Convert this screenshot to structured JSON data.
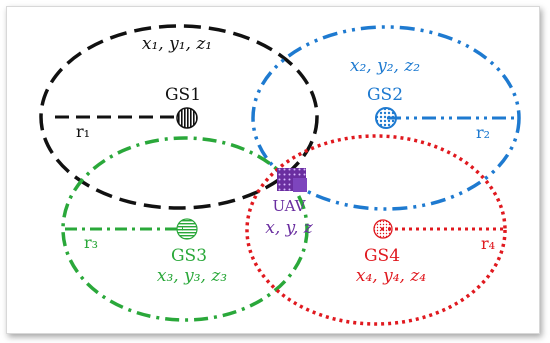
{
  "colors": {
    "gs1": "#111111",
    "gs2": "#1e7ad0",
    "gs3": "#2aa83a",
    "gs4": "#e0191f",
    "uav": "#6a2ea0"
  },
  "stations": [
    {
      "label": "GS1",
      "coord": "x₁, y₁, z₁",
      "radius_label": "r₁",
      "icon": "striped-circle-icon"
    },
    {
      "label": "GS2",
      "coord": "x₂, y₂, z₂",
      "radius_label": "r₂",
      "icon": "dotted-circle-icon"
    },
    {
      "label": "GS3",
      "coord": "x₃, y₃, z₃",
      "radius_label": "r₃",
      "icon": "hatched-circle-icon"
    },
    {
      "label": "GS4",
      "coord": "x₄, y₄, z₄",
      "radius_label": "r₄",
      "icon": "speckled-circle-icon"
    }
  ],
  "uav": {
    "label": "UAV",
    "coord": "x, y, z",
    "icon": "drone-icon"
  }
}
